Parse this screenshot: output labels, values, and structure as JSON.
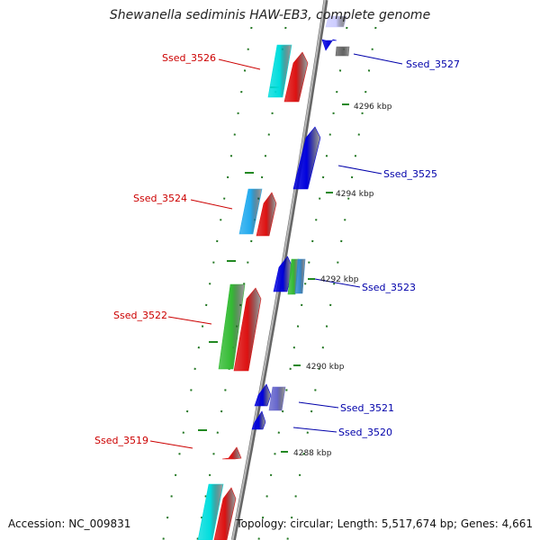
{
  "title": "Shewanella sediminis HAW-EB3, complete genome",
  "accession": "Accession: NC_009831",
  "topology": "Topology: circular; Length: 5,517,674 bp; Genes: 4,661",
  "genes_top": [
    {
      "label": "Ssed_3527",
      "color": "#0000aa"
    },
    {
      "label": "Ssed_3525",
      "color": "#0000aa"
    },
    {
      "label": "Ssed_3523",
      "color": "#0000aa"
    },
    {
      "label": "Ssed_3521",
      "color": "#0000aa"
    },
    {
      "label": "Ssed_3520",
      "color": "#0000aa"
    }
  ],
  "genes_bottom": [
    {
      "label": "Ssed_3526",
      "color": "#cc0000"
    },
    {
      "label": "Ssed_3524",
      "color": "#cc0000"
    },
    {
      "label": "Ssed_3522",
      "color": "#cc0000"
    },
    {
      "label": "Ssed_3519",
      "color": "#cc0000"
    }
  ],
  "ticks": [
    "4296 kbp",
    "4294 kbp",
    "4292 kbp",
    "4290 kbp",
    "4288 kbp"
  ],
  "colors": {
    "backbone": "#888888",
    "cds": "#dd1111",
    "gene_cyan": "#00dddd",
    "gene_lightblue": "#22aaee",
    "gene_green": "#33bb33",
    "gene_blue": "#0000dd",
    "gene_purple": "#6666cc",
    "gene_gray": "#666666",
    "dots": "#227722"
  }
}
